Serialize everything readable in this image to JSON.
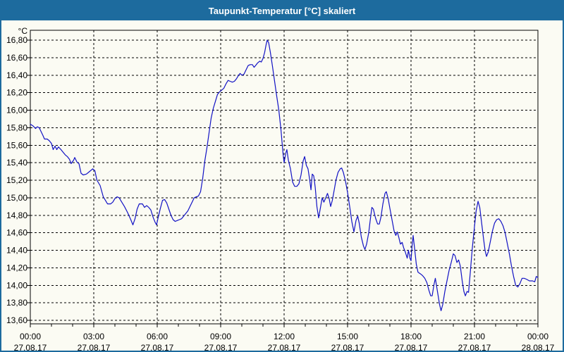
{
  "window": {
    "title": "Taupunkt-Temperatur [°C] skaliert"
  },
  "colors": {
    "titlebar_bg": "#1d6b9e",
    "window_bg": "#fbfbf3",
    "window_border": "#1d6b9e",
    "axis": "#000000",
    "grid": "#000000",
    "label_text": "#000000",
    "line": "#1212c4"
  },
  "chart_data": {
    "type": "line",
    "title": "Taupunkt-Temperatur [°C] skaliert",
    "y_unit_label": "°C",
    "ylabel": "",
    "xlabel": "",
    "ylim": [
      13.6,
      16.8
    ],
    "xlim_hours": [
      0,
      24
    ],
    "grid": "dashed",
    "legend_position": "none",
    "y_ticks": [
      {
        "v": 16.8,
        "label": "16,80"
      },
      {
        "v": 16.6,
        "label": "16,60"
      },
      {
        "v": 16.4,
        "label": "16,40"
      },
      {
        "v": 16.2,
        "label": "16,20"
      },
      {
        "v": 16.0,
        "label": "16,00"
      },
      {
        "v": 15.8,
        "label": "15,80"
      },
      {
        "v": 15.6,
        "label": "15,60"
      },
      {
        "v": 15.4,
        "label": "15,40"
      },
      {
        "v": 15.2,
        "label": "15,20"
      },
      {
        "v": 15.0,
        "label": "15,00"
      },
      {
        "v": 14.8,
        "label": "14,80"
      },
      {
        "v": 14.6,
        "label": "14,60"
      },
      {
        "v": 14.4,
        "label": "14,40"
      },
      {
        "v": 14.2,
        "label": "14,20"
      },
      {
        "v": 14.0,
        "label": "14,00"
      },
      {
        "v": 13.8,
        "label": "13,80"
      },
      {
        "v": 13.6,
        "label": "13,60"
      }
    ],
    "x_ticks": [
      {
        "h": 0,
        "time": "00:00",
        "date": "27.08.17"
      },
      {
        "h": 3,
        "time": "03:00",
        "date": "27.08.17"
      },
      {
        "h": 6,
        "time": "06:00",
        "date": "27.08.17"
      },
      {
        "h": 9,
        "time": "09:00",
        "date": "27.08.17"
      },
      {
        "h": 12,
        "time": "12:00",
        "date": "27.08.17"
      },
      {
        "h": 15,
        "time": "15:00",
        "date": "27.08.17"
      },
      {
        "h": 18,
        "time": "18:00",
        "date": "27.08.17"
      },
      {
        "h": 21,
        "time": "21:00",
        "date": "27.08.17"
      },
      {
        "h": 24,
        "time": "00:00",
        "date": "28.08.17"
      }
    ],
    "x_minor_tick_hours": 1,
    "x_gridline_hours": [
      3,
      6,
      9,
      12,
      15,
      18,
      21
    ],
    "series": [
      {
        "name": "Taupunkt-Temperatur",
        "points": [
          [
            0.0,
            15.84
          ],
          [
            0.13,
            15.82
          ],
          [
            0.25,
            15.79
          ],
          [
            0.33,
            15.81
          ],
          [
            0.42,
            15.8
          ],
          [
            0.5,
            15.76
          ],
          [
            0.6,
            15.71
          ],
          [
            0.67,
            15.67
          ],
          [
            0.8,
            15.67
          ],
          [
            0.9,
            15.65
          ],
          [
            1.0,
            15.62
          ],
          [
            1.08,
            15.55
          ],
          [
            1.17,
            15.59
          ],
          [
            1.25,
            15.55
          ],
          [
            1.33,
            15.58
          ],
          [
            1.45,
            15.55
          ],
          [
            1.55,
            15.52
          ],
          [
            1.65,
            15.49
          ],
          [
            1.75,
            15.47
          ],
          [
            1.85,
            15.44
          ],
          [
            1.93,
            15.39
          ],
          [
            2.05,
            15.43
          ],
          [
            2.1,
            15.46
          ],
          [
            2.2,
            15.41
          ],
          [
            2.3,
            15.39
          ],
          [
            2.4,
            15.28
          ],
          [
            2.5,
            15.26
          ],
          [
            2.65,
            15.27
          ],
          [
            2.8,
            15.3
          ],
          [
            2.95,
            15.33
          ],
          [
            3.05,
            15.31
          ],
          [
            3.15,
            15.2
          ],
          [
            3.3,
            15.14
          ],
          [
            3.45,
            15.01
          ],
          [
            3.55,
            14.97
          ],
          [
            3.65,
            14.93
          ],
          [
            3.8,
            14.93
          ],
          [
            3.9,
            14.95
          ],
          [
            4.0,
            14.99
          ],
          [
            4.1,
            15.01
          ],
          [
            4.2,
            15.0
          ],
          [
            4.3,
            14.96
          ],
          [
            4.45,
            14.9
          ],
          [
            4.6,
            14.83
          ],
          [
            4.75,
            14.75
          ],
          [
            4.85,
            14.69
          ],
          [
            4.95,
            14.76
          ],
          [
            5.05,
            14.87
          ],
          [
            5.15,
            14.93
          ],
          [
            5.3,
            14.93
          ],
          [
            5.4,
            14.89
          ],
          [
            5.5,
            14.91
          ],
          [
            5.6,
            14.89
          ],
          [
            5.7,
            14.86
          ],
          [
            5.8,
            14.78
          ],
          [
            5.9,
            14.72
          ],
          [
            5.97,
            14.69
          ],
          [
            6.05,
            14.78
          ],
          [
            6.15,
            14.88
          ],
          [
            6.25,
            14.97
          ],
          [
            6.35,
            14.98
          ],
          [
            6.45,
            14.94
          ],
          [
            6.55,
            14.87
          ],
          [
            6.65,
            14.8
          ],
          [
            6.75,
            14.75
          ],
          [
            6.85,
            14.73
          ],
          [
            6.95,
            14.74
          ],
          [
            7.05,
            14.75
          ],
          [
            7.15,
            14.76
          ],
          [
            7.25,
            14.79
          ],
          [
            7.35,
            14.82
          ],
          [
            7.45,
            14.85
          ],
          [
            7.55,
            14.9
          ],
          [
            7.65,
            14.95
          ],
          [
            7.75,
            15.0
          ],
          [
            7.85,
            15.01
          ],
          [
            7.95,
            15.02
          ],
          [
            8.05,
            15.07
          ],
          [
            8.15,
            15.22
          ],
          [
            8.25,
            15.42
          ],
          [
            8.35,
            15.57
          ],
          [
            8.45,
            15.74
          ],
          [
            8.55,
            15.91
          ],
          [
            8.65,
            16.02
          ],
          [
            8.75,
            16.1
          ],
          [
            8.85,
            16.18
          ],
          [
            8.95,
            16.21
          ],
          [
            9.05,
            16.23
          ],
          [
            9.15,
            16.25
          ],
          [
            9.25,
            16.3
          ],
          [
            9.35,
            16.34
          ],
          [
            9.45,
            16.33
          ],
          [
            9.55,
            16.32
          ],
          [
            9.65,
            16.33
          ],
          [
            9.75,
            16.36
          ],
          [
            9.85,
            16.4
          ],
          [
            9.92,
            16.42
          ],
          [
            10.0,
            16.4
          ],
          [
            10.1,
            16.41
          ],
          [
            10.2,
            16.46
          ],
          [
            10.3,
            16.51
          ],
          [
            10.4,
            16.52
          ],
          [
            10.5,
            16.52
          ],
          [
            10.58,
            16.49
          ],
          [
            10.65,
            16.51
          ],
          [
            10.75,
            16.54
          ],
          [
            10.85,
            16.56
          ],
          [
            10.92,
            16.55
          ],
          [
            11.0,
            16.59
          ],
          [
            11.08,
            16.66
          ],
          [
            11.15,
            16.75
          ],
          [
            11.2,
            16.8
          ],
          [
            11.27,
            16.77
          ],
          [
            11.35,
            16.66
          ],
          [
            11.45,
            16.5
          ],
          [
            11.55,
            16.33
          ],
          [
            11.65,
            16.16
          ],
          [
            11.75,
            16.0
          ],
          [
            11.85,
            15.78
          ],
          [
            11.95,
            15.5
          ],
          [
            12.0,
            15.4
          ],
          [
            12.08,
            15.51
          ],
          [
            12.13,
            15.55
          ],
          [
            12.2,
            15.43
          ],
          [
            12.3,
            15.33
          ],
          [
            12.4,
            15.18
          ],
          [
            12.5,
            15.13
          ],
          [
            12.6,
            15.13
          ],
          [
            12.7,
            15.16
          ],
          [
            12.8,
            15.26
          ],
          [
            12.9,
            15.42
          ],
          [
            12.97,
            15.47
          ],
          [
            13.05,
            15.37
          ],
          [
            13.13,
            15.33
          ],
          [
            13.2,
            15.22
          ],
          [
            13.27,
            15.09
          ],
          [
            13.33,
            15.27
          ],
          [
            13.4,
            15.25
          ],
          [
            13.47,
            15.12
          ],
          [
            13.55,
            14.9
          ],
          [
            13.63,
            14.77
          ],
          [
            13.72,
            14.89
          ],
          [
            13.8,
            15.0
          ],
          [
            13.88,
            14.95
          ],
          [
            13.97,
            15.0
          ],
          [
            14.05,
            15.05
          ],
          [
            14.13,
            14.99
          ],
          [
            14.2,
            14.9
          ],
          [
            14.28,
            14.97
          ],
          [
            14.37,
            15.09
          ],
          [
            14.45,
            15.2
          ],
          [
            14.55,
            15.29
          ],
          [
            14.65,
            15.33
          ],
          [
            14.72,
            15.34
          ],
          [
            14.8,
            15.29
          ],
          [
            14.9,
            15.19
          ],
          [
            15.0,
            15.06
          ],
          [
            15.1,
            14.9
          ],
          [
            15.2,
            14.73
          ],
          [
            15.3,
            14.61
          ],
          [
            15.4,
            14.74
          ],
          [
            15.48,
            14.79
          ],
          [
            15.55,
            14.71
          ],
          [
            15.65,
            14.55
          ],
          [
            15.75,
            14.45
          ],
          [
            15.82,
            14.41
          ],
          [
            15.9,
            14.47
          ],
          [
            16.0,
            14.6
          ],
          [
            16.08,
            14.76
          ],
          [
            16.15,
            14.89
          ],
          [
            16.22,
            14.87
          ],
          [
            16.32,
            14.77
          ],
          [
            16.42,
            14.7
          ],
          [
            16.5,
            14.7
          ],
          [
            16.58,
            14.78
          ],
          [
            16.67,
            14.93
          ],
          [
            16.77,
            15.05
          ],
          [
            16.83,
            15.07
          ],
          [
            16.92,
            14.99
          ],
          [
            17.0,
            14.88
          ],
          [
            17.1,
            14.75
          ],
          [
            17.2,
            14.62
          ],
          [
            17.28,
            14.57
          ],
          [
            17.35,
            14.61
          ],
          [
            17.42,
            14.55
          ],
          [
            17.5,
            14.47
          ],
          [
            17.58,
            14.49
          ],
          [
            17.65,
            14.43
          ],
          [
            17.73,
            14.38
          ],
          [
            17.82,
            14.31
          ],
          [
            17.88,
            14.4
          ],
          [
            17.95,
            14.31
          ],
          [
            18.0,
            14.28
          ],
          [
            18.05,
            14.45
          ],
          [
            18.1,
            14.57
          ],
          [
            18.17,
            14.42
          ],
          [
            18.25,
            14.24
          ],
          [
            18.33,
            14.15
          ],
          [
            18.45,
            14.13
          ],
          [
            18.55,
            14.11
          ],
          [
            18.65,
            14.08
          ],
          [
            18.75,
            14.03
          ],
          [
            18.85,
            13.94
          ],
          [
            18.93,
            13.88
          ],
          [
            19.0,
            13.88
          ],
          [
            19.08,
            14.0
          ],
          [
            19.15,
            14.08
          ],
          [
            19.25,
            13.93
          ],
          [
            19.35,
            13.78
          ],
          [
            19.42,
            13.71
          ],
          [
            19.5,
            13.78
          ],
          [
            19.6,
            13.93
          ],
          [
            19.7,
            14.05
          ],
          [
            19.8,
            14.17
          ],
          [
            19.9,
            14.26
          ],
          [
            20.0,
            14.36
          ],
          [
            20.08,
            14.34
          ],
          [
            20.17,
            14.26
          ],
          [
            20.25,
            14.29
          ],
          [
            20.33,
            14.22
          ],
          [
            20.42,
            14.05
          ],
          [
            20.5,
            13.93
          ],
          [
            20.57,
            13.88
          ],
          [
            20.65,
            13.93
          ],
          [
            20.72,
            13.92
          ],
          [
            20.8,
            14.14
          ],
          [
            20.9,
            14.43
          ],
          [
            21.0,
            14.67
          ],
          [
            21.08,
            14.85
          ],
          [
            21.17,
            14.96
          ],
          [
            21.25,
            14.89
          ],
          [
            21.33,
            14.73
          ],
          [
            21.42,
            14.55
          ],
          [
            21.5,
            14.4
          ],
          [
            21.57,
            14.33
          ],
          [
            21.65,
            14.38
          ],
          [
            21.75,
            14.5
          ],
          [
            21.85,
            14.62
          ],
          [
            21.95,
            14.71
          ],
          [
            22.05,
            14.75
          ],
          [
            22.15,
            14.76
          ],
          [
            22.25,
            14.73
          ],
          [
            22.35,
            14.68
          ],
          [
            22.45,
            14.6
          ],
          [
            22.55,
            14.48
          ],
          [
            22.65,
            14.36
          ],
          [
            22.75,
            14.22
          ],
          [
            22.85,
            14.1
          ],
          [
            22.95,
            14.0
          ],
          [
            23.05,
            13.98
          ],
          [
            23.15,
            14.02
          ],
          [
            23.25,
            14.08
          ],
          [
            23.35,
            14.08
          ],
          [
            23.45,
            14.07
          ],
          [
            23.6,
            14.05
          ],
          [
            23.75,
            14.05
          ],
          [
            23.85,
            14.04
          ],
          [
            23.92,
            14.1
          ],
          [
            24.0,
            14.09
          ]
        ]
      }
    ]
  }
}
